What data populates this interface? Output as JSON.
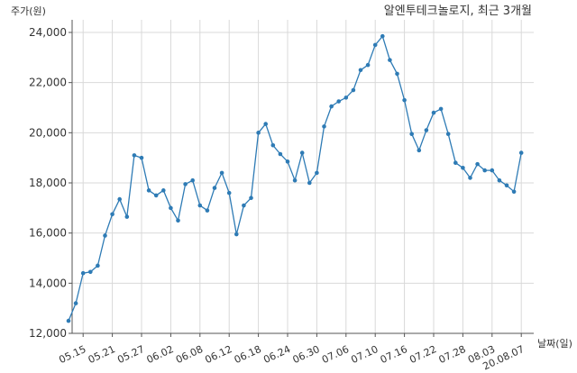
{
  "chart_data": {
    "type": "line",
    "title": "알엔투테크놀로지, 최근 3개월",
    "ylabel": "주가(원)",
    "xlabel": "날짜(일)",
    "ylim": [
      12000,
      24000
    ],
    "yticks": [
      12000,
      14000,
      16000,
      18000,
      20000,
      22000,
      24000
    ],
    "ytick_labels": [
      "12,000",
      "14,000",
      "16,000",
      "18,000",
      "20,000",
      "22,000",
      "24,000"
    ],
    "xtick_labels": [
      "05.15",
      "05.21",
      "05.27",
      "06.02",
      "06.08",
      "06.12",
      "06.18",
      "06.24",
      "06.30",
      "07.06",
      "07.10",
      "07.16",
      "07.22",
      "07.28",
      "08.03",
      "20.08.07"
    ],
    "xtick_positions": [
      2,
      6,
      10,
      14,
      18,
      22,
      26,
      30,
      34,
      38,
      42,
      46,
      50,
      54,
      58,
      62
    ],
    "grid": true,
    "line_color": "#2e7bb5",
    "series": [
      {
        "values": [
          12500,
          13200,
          14400,
          14450,
          14700,
          15900,
          16750,
          17350,
          16650,
          19100,
          19000,
          17700,
          17500,
          17700,
          17000,
          16500,
          17950,
          18100,
          17100,
          16900,
          17800,
          18400,
          17600,
          15950,
          17100,
          17400,
          20000,
          20350,
          19500,
          19150,
          18850,
          18100,
          19200,
          18000,
          18400,
          20250,
          21050,
          21250,
          21400,
          21700,
          22500,
          22700,
          23500,
          23850,
          22900,
          22350,
          21300,
          19950,
          19300,
          20100,
          20800,
          20950,
          19950,
          18800,
          18600,
          18200,
          18750,
          18500,
          18500,
          18100,
          17900,
          17650,
          19200
        ]
      }
    ]
  }
}
